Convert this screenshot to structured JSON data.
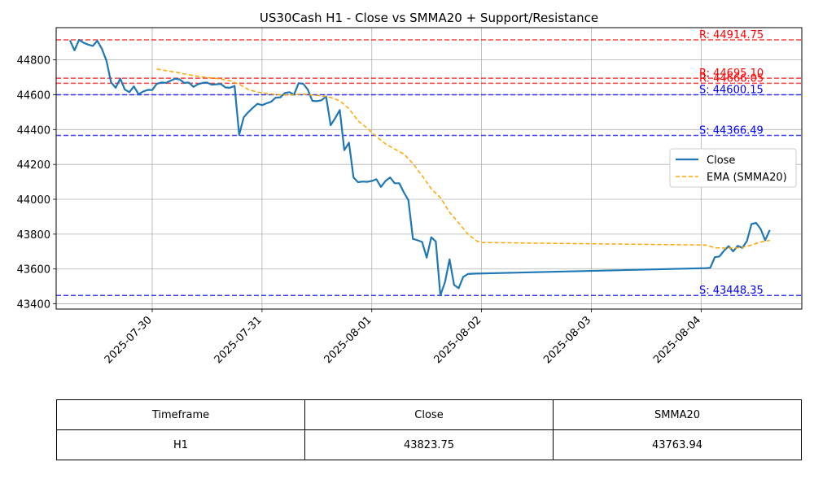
{
  "chart_data": {
    "type": "line",
    "title": "US30Cash H1 - Close vs SMMA20 + Support/Resistance",
    "xlabel": "",
    "ylabel": "",
    "x_range": [
      "2025-07-29T03:00",
      "2025-08-04T22:00"
    ],
    "ylim": [
      43370,
      44985
    ],
    "x_ticks": [
      "2025-07-30",
      "2025-07-31",
      "2025-08-01",
      "2025-08-02",
      "2025-08-03",
      "2025-08-04"
    ],
    "y_ticks": [
      43400,
      43600,
      43800,
      44000,
      44200,
      44400,
      44600,
      44800
    ],
    "grid": true,
    "legend_position": "center-right",
    "series": [
      {
        "name": "Close",
        "color": "#1f77b4",
        "style": "solid",
        "points": [
          [
            "2025-07-29T06:00",
            44912
          ],
          [
            "2025-07-29T07:00",
            44855
          ],
          [
            "2025-07-29T08:00",
            44915
          ],
          [
            "2025-07-29T09:00",
            44898
          ],
          [
            "2025-07-29T10:00",
            44888
          ],
          [
            "2025-07-29T11:00",
            44880
          ],
          [
            "2025-07-29T12:00",
            44910
          ],
          [
            "2025-07-29T13:00",
            44863
          ],
          [
            "2025-07-29T14:00",
            44795
          ],
          [
            "2025-07-29T15:00",
            44672
          ],
          [
            "2025-07-29T16:00",
            44640
          ],
          [
            "2025-07-29T17:00",
            44693
          ],
          [
            "2025-07-29T18:00",
            44630
          ],
          [
            "2025-07-29T19:00",
            44615
          ],
          [
            "2025-07-29T20:00",
            44648
          ],
          [
            "2025-07-29T21:00",
            44603
          ],
          [
            "2025-07-29T22:00",
            44618
          ],
          [
            "2025-07-29T23:00",
            44628
          ],
          [
            "2025-07-30T00:00",
            44627
          ],
          [
            "2025-07-30T01:00",
            44663
          ],
          [
            "2025-07-30T02:00",
            44670
          ],
          [
            "2025-07-30T03:00",
            44668
          ],
          [
            "2025-07-30T04:00",
            44680
          ],
          [
            "2025-07-30T05:00",
            44692
          ],
          [
            "2025-07-30T06:00",
            44688
          ],
          [
            "2025-07-30T07:00",
            44668
          ],
          [
            "2025-07-30T08:00",
            44670
          ],
          [
            "2025-07-30T09:00",
            44645
          ],
          [
            "2025-07-30T10:00",
            44660
          ],
          [
            "2025-07-30T11:00",
            44668
          ],
          [
            "2025-07-30T12:00",
            44670
          ],
          [
            "2025-07-30T13:00",
            44658
          ],
          [
            "2025-07-30T14:00",
            44660
          ],
          [
            "2025-07-30T15:00",
            44662
          ],
          [
            "2025-07-30T16:00",
            44642
          ],
          [
            "2025-07-30T17:00",
            44640
          ],
          [
            "2025-07-30T18:00",
            44651
          ],
          [
            "2025-07-30T19:00",
            44370
          ],
          [
            "2025-07-30T20:00",
            44470
          ],
          [
            "2025-07-30T21:00",
            44500
          ],
          [
            "2025-07-30T22:00",
            44525
          ],
          [
            "2025-07-30T23:00",
            44548
          ],
          [
            "2025-07-31T00:00",
            44540
          ],
          [
            "2025-07-31T01:00",
            44551
          ],
          [
            "2025-07-31T02:00",
            44560
          ],
          [
            "2025-07-31T03:00",
            44583
          ],
          [
            "2025-07-31T04:00",
            44585
          ],
          [
            "2025-07-31T05:00",
            44610
          ],
          [
            "2025-07-31T06:00",
            44615
          ],
          [
            "2025-07-31T07:00",
            44600
          ],
          [
            "2025-07-31T08:00",
            44666
          ],
          [
            "2025-07-31T09:00",
            44663
          ],
          [
            "2025-07-31T10:00",
            44630
          ],
          [
            "2025-07-31T11:00",
            44565
          ],
          [
            "2025-07-31T12:00",
            44563
          ],
          [
            "2025-07-31T13:00",
            44568
          ],
          [
            "2025-07-31T14:00",
            44590
          ],
          [
            "2025-07-31T15:00",
            44425
          ],
          [
            "2025-07-31T16:00",
            44466
          ],
          [
            "2025-07-31T17:00",
            44512
          ],
          [
            "2025-07-31T18:00",
            44282
          ],
          [
            "2025-07-31T19:00",
            44325
          ],
          [
            "2025-07-31T20:00",
            44125
          ],
          [
            "2025-07-31T21:00",
            44098
          ],
          [
            "2025-07-31T22:00",
            44102
          ],
          [
            "2025-07-31T23:00",
            44100
          ],
          [
            "2025-08-01T00:00",
            44105
          ],
          [
            "2025-08-01T01:00",
            44115
          ],
          [
            "2025-08-01T02:00",
            44071
          ],
          [
            "2025-08-01T03:00",
            44105
          ],
          [
            "2025-08-01T04:00",
            44125
          ],
          [
            "2025-08-01T05:00",
            44092
          ],
          [
            "2025-08-01T06:00",
            44092
          ],
          [
            "2025-08-01T07:00",
            44040
          ],
          [
            "2025-08-01T08:00",
            43995
          ],
          [
            "2025-08-01T09:00",
            43773
          ],
          [
            "2025-08-01T10:00",
            43765
          ],
          [
            "2025-08-01T11:00",
            43755
          ],
          [
            "2025-08-01T12:00",
            43665
          ],
          [
            "2025-08-01T13:00",
            43782
          ],
          [
            "2025-08-01T14:00",
            43758
          ],
          [
            "2025-08-01T15:00",
            43448
          ],
          [
            "2025-08-01T16:00",
            43525
          ],
          [
            "2025-08-01T17:00",
            43655
          ],
          [
            "2025-08-01T18:00",
            43508
          ],
          [
            "2025-08-01T19:00",
            43490
          ],
          [
            "2025-08-01T20:00",
            43555
          ],
          [
            "2025-08-01T21:00",
            43571
          ],
          [
            "2025-08-01T22:00",
            43573
          ],
          [
            "2025-08-04T01:00",
            43605
          ],
          [
            "2025-08-04T02:00",
            43607
          ],
          [
            "2025-08-04T03:00",
            43668
          ],
          [
            "2025-08-04T04:00",
            43672
          ],
          [
            "2025-08-04T05:00",
            43705
          ],
          [
            "2025-08-04T06:00",
            43731
          ],
          [
            "2025-08-04T07:00",
            43701
          ],
          [
            "2025-08-04T08:00",
            43733
          ],
          [
            "2025-08-04T09:00",
            43721
          ],
          [
            "2025-08-04T10:00",
            43760
          ],
          [
            "2025-08-04T11:00",
            43858
          ],
          [
            "2025-08-04T12:00",
            43865
          ],
          [
            "2025-08-04T13:00",
            43830
          ],
          [
            "2025-08-04T14:00",
            43765
          ],
          [
            "2025-08-04T15:00",
            43823.75
          ]
        ]
      },
      {
        "name": "EMA (SMMA20)",
        "color": "#ffa500",
        "style": "dashed",
        "points": [
          [
            "2025-07-30T01:00",
            44748
          ],
          [
            "2025-07-30T03:00",
            44738
          ],
          [
            "2025-07-30T05:00",
            44730
          ],
          [
            "2025-07-30T07:00",
            44720
          ],
          [
            "2025-07-30T09:00",
            44710
          ],
          [
            "2025-07-30T11:00",
            44702
          ],
          [
            "2025-07-30T13:00",
            44696
          ],
          [
            "2025-07-30T15:00",
            44690
          ],
          [
            "2025-07-30T17:00",
            44680
          ],
          [
            "2025-07-30T19:00",
            44660
          ],
          [
            "2025-07-30T21:00",
            44630
          ],
          [
            "2025-07-30T23:00",
            44615
          ],
          [
            "2025-07-31T01:00",
            44608
          ],
          [
            "2025-07-31T03:00",
            44601
          ],
          [
            "2025-07-31T05:00",
            44598
          ],
          [
            "2025-07-31T07:00",
            44600
          ],
          [
            "2025-07-31T09:00",
            44604
          ],
          [
            "2025-07-31T11:00",
            44598
          ],
          [
            "2025-07-31T13:00",
            44594
          ],
          [
            "2025-07-31T15:00",
            44585
          ],
          [
            "2025-07-31T17:00",
            44565
          ],
          [
            "2025-07-31T19:00",
            44520
          ],
          [
            "2025-07-31T21:00",
            44450
          ],
          [
            "2025-07-31T23:00",
            44408
          ],
          [
            "2025-08-01T01:00",
            44360
          ],
          [
            "2025-08-01T03:00",
            44318
          ],
          [
            "2025-08-01T05:00",
            44288
          ],
          [
            "2025-08-01T07:00",
            44260
          ],
          [
            "2025-08-01T09:00",
            44205
          ],
          [
            "2025-08-01T11:00",
            44135
          ],
          [
            "2025-08-01T13:00",
            44060
          ],
          [
            "2025-08-01T15:00",
            44010
          ],
          [
            "2025-08-01T17:00",
            43925
          ],
          [
            "2025-08-01T19:00",
            43865
          ],
          [
            "2025-08-01T21:00",
            43800
          ],
          [
            "2025-08-01T23:00",
            43760
          ],
          [
            "2025-08-02T00:00",
            43752
          ],
          [
            "2025-08-04T00:00",
            43738
          ],
          [
            "2025-08-04T01:00",
            43737
          ],
          [
            "2025-08-04T03:00",
            43722
          ],
          [
            "2025-08-04T05:00",
            43720
          ],
          [
            "2025-08-04T07:00",
            43720
          ],
          [
            "2025-08-04T09:00",
            43724
          ],
          [
            "2025-08-04T11:00",
            43737
          ],
          [
            "2025-08-04T13:00",
            43755
          ],
          [
            "2025-08-04T15:00",
            43763.94
          ]
        ]
      }
    ],
    "levels": [
      {
        "kind": "R",
        "value": 44914.75,
        "label": "R: 44914.75",
        "color": "#ff0000"
      },
      {
        "kind": "R",
        "value": 44695.1,
        "label": "R: 44695.10",
        "color": "#ff0000"
      },
      {
        "kind": "R",
        "value": 44666.05,
        "label": "R: 44666.05",
        "color": "#ff0000"
      },
      {
        "kind": "S",
        "value": 44600.15,
        "label": "S: 44600.15",
        "color": "#0000ff"
      },
      {
        "kind": "S",
        "value": 44366.49,
        "label": "S: 44366.49",
        "color": "#0000ff"
      },
      {
        "kind": "S",
        "value": 43448.35,
        "label": "S: 43448.35",
        "color": "#0000ff"
      }
    ]
  },
  "summary_table": {
    "headers": [
      "Timeframe",
      "Close",
      "SMMA20"
    ],
    "row": [
      "H1",
      "43823.75",
      "43763.94"
    ]
  }
}
